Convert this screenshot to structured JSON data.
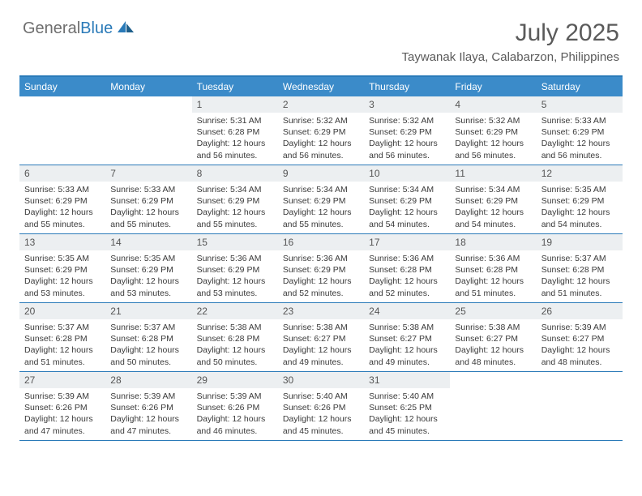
{
  "brand": {
    "part1": "General",
    "part2": "Blue"
  },
  "title": "July 2025",
  "location": "Taywanak Ilaya, Calabarzon, Philippines",
  "colors": {
    "header_bg": "#3b8bc9",
    "border": "#2a7ab8",
    "daynum_bg": "#eceff1",
    "text": "#333333",
    "brand_gray": "#6e6e6e",
    "brand_blue": "#2a7ab8"
  },
  "dayNames": [
    "Sunday",
    "Monday",
    "Tuesday",
    "Wednesday",
    "Thursday",
    "Friday",
    "Saturday"
  ],
  "startOffset": 2,
  "days": [
    {
      "n": 1,
      "sunrise": "5:31 AM",
      "sunset": "6:28 PM",
      "daylight": "12 hours and 56 minutes."
    },
    {
      "n": 2,
      "sunrise": "5:32 AM",
      "sunset": "6:29 PM",
      "daylight": "12 hours and 56 minutes."
    },
    {
      "n": 3,
      "sunrise": "5:32 AM",
      "sunset": "6:29 PM",
      "daylight": "12 hours and 56 minutes."
    },
    {
      "n": 4,
      "sunrise": "5:32 AM",
      "sunset": "6:29 PM",
      "daylight": "12 hours and 56 minutes."
    },
    {
      "n": 5,
      "sunrise": "5:33 AM",
      "sunset": "6:29 PM",
      "daylight": "12 hours and 56 minutes."
    },
    {
      "n": 6,
      "sunrise": "5:33 AM",
      "sunset": "6:29 PM",
      "daylight": "12 hours and 55 minutes."
    },
    {
      "n": 7,
      "sunrise": "5:33 AM",
      "sunset": "6:29 PM",
      "daylight": "12 hours and 55 minutes."
    },
    {
      "n": 8,
      "sunrise": "5:34 AM",
      "sunset": "6:29 PM",
      "daylight": "12 hours and 55 minutes."
    },
    {
      "n": 9,
      "sunrise": "5:34 AM",
      "sunset": "6:29 PM",
      "daylight": "12 hours and 55 minutes."
    },
    {
      "n": 10,
      "sunrise": "5:34 AM",
      "sunset": "6:29 PM",
      "daylight": "12 hours and 54 minutes."
    },
    {
      "n": 11,
      "sunrise": "5:34 AM",
      "sunset": "6:29 PM",
      "daylight": "12 hours and 54 minutes."
    },
    {
      "n": 12,
      "sunrise": "5:35 AM",
      "sunset": "6:29 PM",
      "daylight": "12 hours and 54 minutes."
    },
    {
      "n": 13,
      "sunrise": "5:35 AM",
      "sunset": "6:29 PM",
      "daylight": "12 hours and 53 minutes."
    },
    {
      "n": 14,
      "sunrise": "5:35 AM",
      "sunset": "6:29 PM",
      "daylight": "12 hours and 53 minutes."
    },
    {
      "n": 15,
      "sunrise": "5:36 AM",
      "sunset": "6:29 PM",
      "daylight": "12 hours and 53 minutes."
    },
    {
      "n": 16,
      "sunrise": "5:36 AM",
      "sunset": "6:29 PM",
      "daylight": "12 hours and 52 minutes."
    },
    {
      "n": 17,
      "sunrise": "5:36 AM",
      "sunset": "6:28 PM",
      "daylight": "12 hours and 52 minutes."
    },
    {
      "n": 18,
      "sunrise": "5:36 AM",
      "sunset": "6:28 PM",
      "daylight": "12 hours and 51 minutes."
    },
    {
      "n": 19,
      "sunrise": "5:37 AM",
      "sunset": "6:28 PM",
      "daylight": "12 hours and 51 minutes."
    },
    {
      "n": 20,
      "sunrise": "5:37 AM",
      "sunset": "6:28 PM",
      "daylight": "12 hours and 51 minutes."
    },
    {
      "n": 21,
      "sunrise": "5:37 AM",
      "sunset": "6:28 PM",
      "daylight": "12 hours and 50 minutes."
    },
    {
      "n": 22,
      "sunrise": "5:38 AM",
      "sunset": "6:28 PM",
      "daylight": "12 hours and 50 minutes."
    },
    {
      "n": 23,
      "sunrise": "5:38 AM",
      "sunset": "6:27 PM",
      "daylight": "12 hours and 49 minutes."
    },
    {
      "n": 24,
      "sunrise": "5:38 AM",
      "sunset": "6:27 PM",
      "daylight": "12 hours and 49 minutes."
    },
    {
      "n": 25,
      "sunrise": "5:38 AM",
      "sunset": "6:27 PM",
      "daylight": "12 hours and 48 minutes."
    },
    {
      "n": 26,
      "sunrise": "5:39 AM",
      "sunset": "6:27 PM",
      "daylight": "12 hours and 48 minutes."
    },
    {
      "n": 27,
      "sunrise": "5:39 AM",
      "sunset": "6:26 PM",
      "daylight": "12 hours and 47 minutes."
    },
    {
      "n": 28,
      "sunrise": "5:39 AM",
      "sunset": "6:26 PM",
      "daylight": "12 hours and 47 minutes."
    },
    {
      "n": 29,
      "sunrise": "5:39 AM",
      "sunset": "6:26 PM",
      "daylight": "12 hours and 46 minutes."
    },
    {
      "n": 30,
      "sunrise": "5:40 AM",
      "sunset": "6:26 PM",
      "daylight": "12 hours and 45 minutes."
    },
    {
      "n": 31,
      "sunrise": "5:40 AM",
      "sunset": "6:25 PM",
      "daylight": "12 hours and 45 minutes."
    }
  ],
  "labels": {
    "sunrise": "Sunrise:",
    "sunset": "Sunset:",
    "daylight": "Daylight:"
  }
}
